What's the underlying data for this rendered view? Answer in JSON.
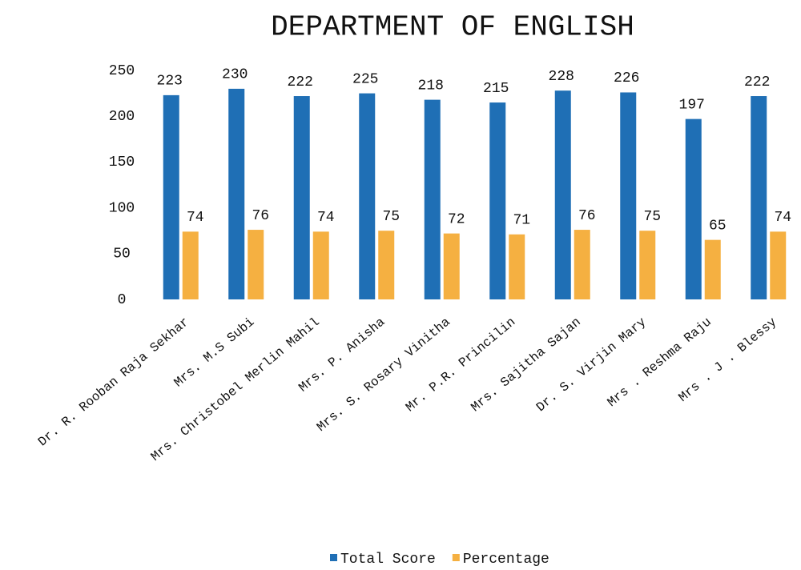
{
  "chart_data": {
    "type": "bar",
    "title": "DEPARTMENT OF ENGLISH",
    "categories": [
      "Dr. R. Rooban Raja Sekhar",
      "Mrs. M.S Subi",
      "Mrs. Christobel Merlin Mahil",
      "Mrs. P. Anisha",
      "Mrs. S. Rosary Vinitha",
      "Mr. P.R. Princilin",
      "Mrs. Sajitha Sajan",
      "Dr. S. Virjin Mary",
      "Mrs . Reshma Raju",
      "Mrs . J . Blessy"
    ],
    "series": [
      {
        "name": "Total Score",
        "color": "#1f6fb5",
        "values": [
          223,
          230,
          222,
          225,
          218,
          215,
          228,
          226,
          197,
          222
        ]
      },
      {
        "name": "Percentage",
        "color": "#f5b041",
        "values": [
          74,
          76,
          74,
          75,
          72,
          71,
          76,
          75,
          65,
          74
        ]
      }
    ],
    "ylim": [
      0,
      250
    ],
    "yticks": [
      0,
      50,
      100,
      150,
      200,
      250
    ],
    "grid": false,
    "legend": "bottom"
  }
}
